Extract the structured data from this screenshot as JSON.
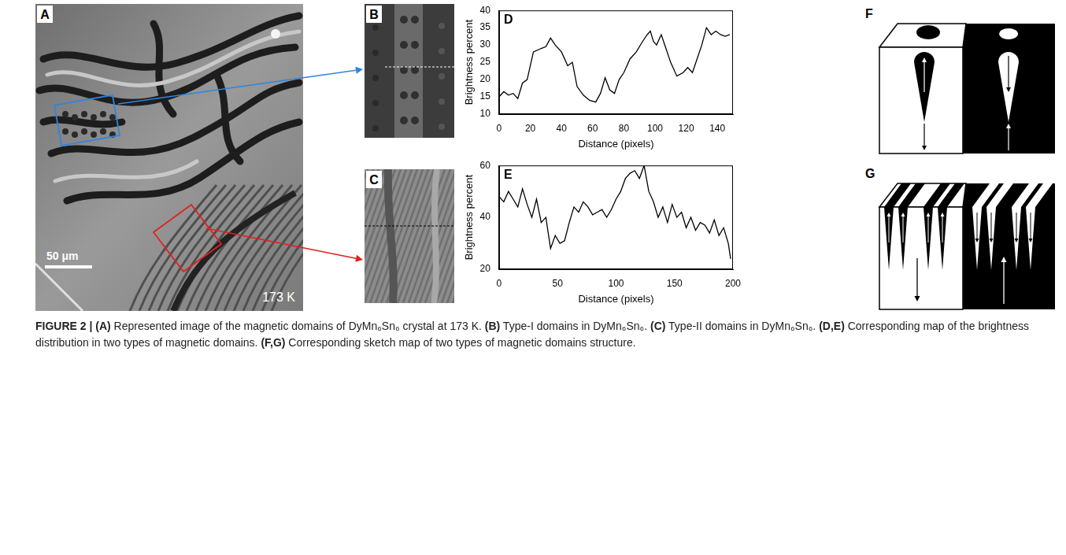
{
  "panels": {
    "A": {
      "label": "A",
      "scale_bar": "50 μm",
      "temperature": "173 K"
    },
    "B": {
      "label": "B"
    },
    "C": {
      "label": "C"
    },
    "F": {
      "label": "F"
    },
    "G": {
      "label": "G"
    }
  },
  "chart_data": [
    {
      "panel": "D",
      "type": "line",
      "xlabel": "Distance (pixels)",
      "ylabel": "Brightness percent",
      "x": [
        0,
        3,
        6,
        9,
        12,
        15,
        18,
        22,
        27,
        30,
        33,
        36,
        40,
        44,
        47,
        50,
        54,
        58,
        62,
        65,
        68,
        71,
        74,
        77,
        80,
        84,
        88,
        92,
        95,
        97,
        99,
        101,
        104,
        107,
        110,
        114,
        118,
        121,
        124,
        127,
        130,
        133,
        136,
        139,
        142,
        145,
        148
      ],
      "values": [
        15,
        16.5,
        15.5,
        16,
        14.5,
        19,
        20,
        28,
        29,
        29.5,
        32,
        30,
        28,
        24,
        25,
        18,
        15.5,
        14,
        13.5,
        16,
        20.5,
        17,
        16,
        20,
        22,
        26,
        28,
        31,
        33,
        34,
        31,
        30,
        33,
        29,
        25,
        21,
        22,
        23.5,
        22,
        26,
        30,
        35,
        33,
        34,
        33,
        32.5,
        33
      ],
      "color": "#000000",
      "xlim": [
        0,
        150
      ],
      "xticks": [
        0,
        20,
        40,
        60,
        80,
        100,
        120,
        140
      ],
      "ylim": [
        10,
        40
      ],
      "yticks": [
        10,
        15,
        20,
        25,
        30,
        35,
        40
      ],
      "grid": false
    },
    {
      "panel": "E",
      "type": "line",
      "xlabel": "Distance (pixels)",
      "ylabel": "Brightness percent",
      "x": [
        0,
        4,
        8,
        12,
        16,
        20,
        24,
        28,
        32,
        36,
        40,
        44,
        48,
        52,
        56,
        60,
        64,
        68,
        72,
        76,
        80,
        84,
        88,
        92,
        96,
        100,
        104,
        108,
        112,
        116,
        120,
        124,
        128,
        132,
        136,
        140,
        144,
        148,
        152,
        156,
        160,
        164,
        168,
        172,
        176,
        180,
        184,
        188,
        192,
        196,
        198
      ],
      "values": [
        48,
        46,
        50,
        47,
        44,
        51,
        45,
        40,
        47,
        38,
        40,
        28,
        33,
        30,
        31,
        38,
        44,
        42,
        46,
        44,
        41,
        42,
        43,
        40,
        43,
        47,
        50,
        55,
        57,
        58,
        55,
        60,
        50,
        46,
        40,
        44,
        38,
        45,
        40,
        42,
        36,
        40,
        35,
        38,
        37,
        34,
        39,
        33,
        36,
        30,
        24
      ],
      "color": "#000000",
      "xlim": [
        0,
        200
      ],
      "xticks": [
        0,
        50,
        100,
        150,
        200
      ],
      "ylim": [
        20,
        60
      ],
      "yticks": [
        20,
        40,
        60
      ],
      "grid": false
    }
  ],
  "caption": {
    "label": "FIGURE 2 |",
    "parts": [
      {
        "tag": "(A)",
        "text": "Represented image of the magnetic domains of DyMn₆Sn₆ crystal at 173 K."
      },
      {
        "tag": "(B)",
        "text": "Type-I domains in DyMn₆Sn₆."
      },
      {
        "tag": "(C)",
        "text": "Type-II domains in DyMn₆Sn₆."
      },
      {
        "tag": "(D,E)",
        "text": "Corresponding map of the brightness distribution in two types of magnetic domains."
      },
      {
        "tag": "(F,G)",
        "text": "Corresponding sketch map of two types of magnetic domains structure."
      }
    ]
  }
}
